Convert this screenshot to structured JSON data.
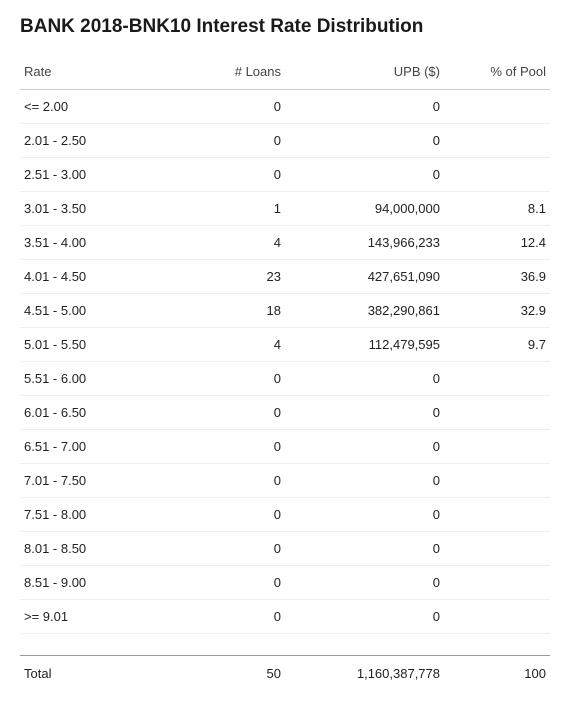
{
  "title": "BANK 2018-BNK10 Interest Rate Distribution",
  "table": {
    "columns": [
      "Rate",
      "# Loans",
      "UPB ($)",
      "% of Pool"
    ],
    "column_align": [
      "left",
      "right",
      "right",
      "right"
    ],
    "rows": [
      {
        "rate": "<= 2.00",
        "loans": "0",
        "upb": "0",
        "pct": ""
      },
      {
        "rate": "2.01 - 2.50",
        "loans": "0",
        "upb": "0",
        "pct": ""
      },
      {
        "rate": "2.51 - 3.00",
        "loans": "0",
        "upb": "0",
        "pct": ""
      },
      {
        "rate": "3.01 - 3.50",
        "loans": "1",
        "upb": "94,000,000",
        "pct": "8.1"
      },
      {
        "rate": "3.51 - 4.00",
        "loans": "4",
        "upb": "143,966,233",
        "pct": "12.4"
      },
      {
        "rate": "4.01 - 4.50",
        "loans": "23",
        "upb": "427,651,090",
        "pct": "36.9"
      },
      {
        "rate": "4.51 - 5.00",
        "loans": "18",
        "upb": "382,290,861",
        "pct": "32.9"
      },
      {
        "rate": "5.01 - 5.50",
        "loans": "4",
        "upb": "112,479,595",
        "pct": "9.7"
      },
      {
        "rate": "5.51 - 6.00",
        "loans": "0",
        "upb": "0",
        "pct": ""
      },
      {
        "rate": "6.01 - 6.50",
        "loans": "0",
        "upb": "0",
        "pct": ""
      },
      {
        "rate": "6.51 - 7.00",
        "loans": "0",
        "upb": "0",
        "pct": ""
      },
      {
        "rate": "7.01 - 7.50",
        "loans": "0",
        "upb": "0",
        "pct": ""
      },
      {
        "rate": "7.51 - 8.00",
        "loans": "0",
        "upb": "0",
        "pct": ""
      },
      {
        "rate": "8.01 - 8.50",
        "loans": "0",
        "upb": "0",
        "pct": ""
      },
      {
        "rate": "8.51 - 9.00",
        "loans": "0",
        "upb": "0",
        "pct": ""
      },
      {
        "rate": ">= 9.01",
        "loans": "0",
        "upb": "0",
        "pct": ""
      }
    ],
    "total": {
      "rate": "Total",
      "loans": "50",
      "upb": "1,160,387,778",
      "pct": "100"
    }
  },
  "colors": {
    "background": "#ffffff",
    "title": "#1a1a1a",
    "header_text": "#444444",
    "body_text": "#222222",
    "header_border": "#cccccc",
    "row_border": "#eeeeee",
    "total_border": "#999999"
  },
  "typography": {
    "title_fontsize": 19,
    "title_fontweight": 700,
    "body_fontsize": 13
  }
}
